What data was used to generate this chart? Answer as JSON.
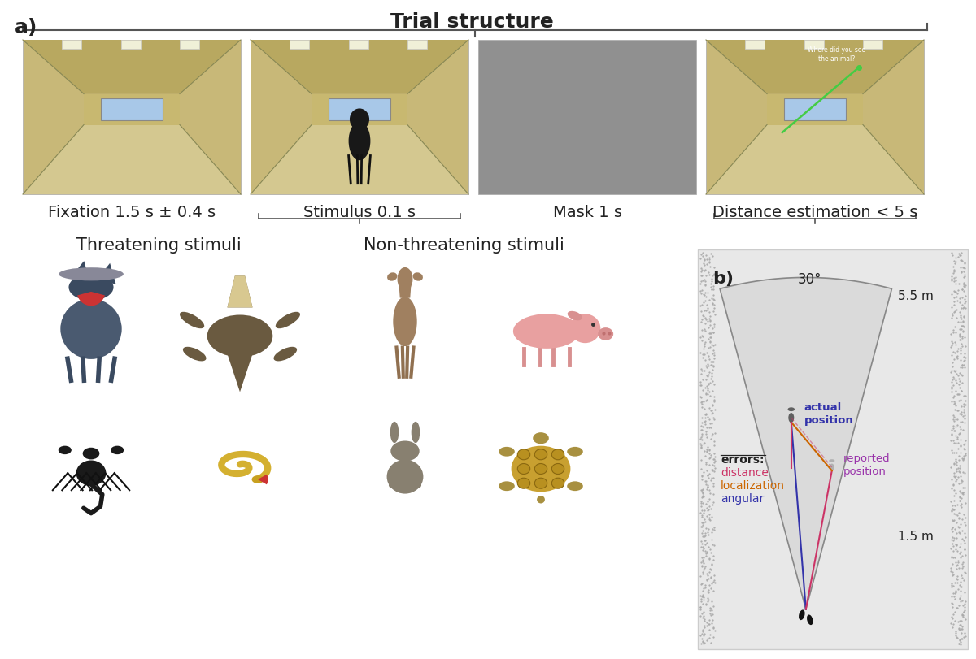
{
  "title_a": "a)",
  "title_trial": "Trial structure",
  "label_fixation": "Fixation 1.5 s ± 0.4 s",
  "label_stimulus": "Stimulus 0.1 s",
  "label_mask": "Mask 1 s",
  "label_distance": "Distance estimation < 5 s",
  "label_threatening": "Threatening stimuli",
  "label_nonthreatening": "Non-threatening stimuli",
  "title_b": "b)",
  "label_30deg": "30°",
  "label_55m": "5.5 m",
  "label_15m": "1.5 m",
  "label_actual": "actual\nposition",
  "label_reported": "reported\nposition",
  "label_errors": "errors:",
  "label_distance_err": "distance",
  "label_localization": "localization",
  "label_angular": "angular",
  "bg_color": "#ffffff",
  "cone_color": "#d8d8d8",
  "cone_edge_color": "#888888",
  "line_actual_color": "#3333aa",
  "line_reported_color": "#cc3366",
  "line_orange_color": "#cc6600",
  "text_color": "#222222",
  "font_size_title": 18,
  "font_size_labels": 14,
  "font_size_small": 11,
  "fig_width": 12.0,
  "fig_height": 8.12
}
